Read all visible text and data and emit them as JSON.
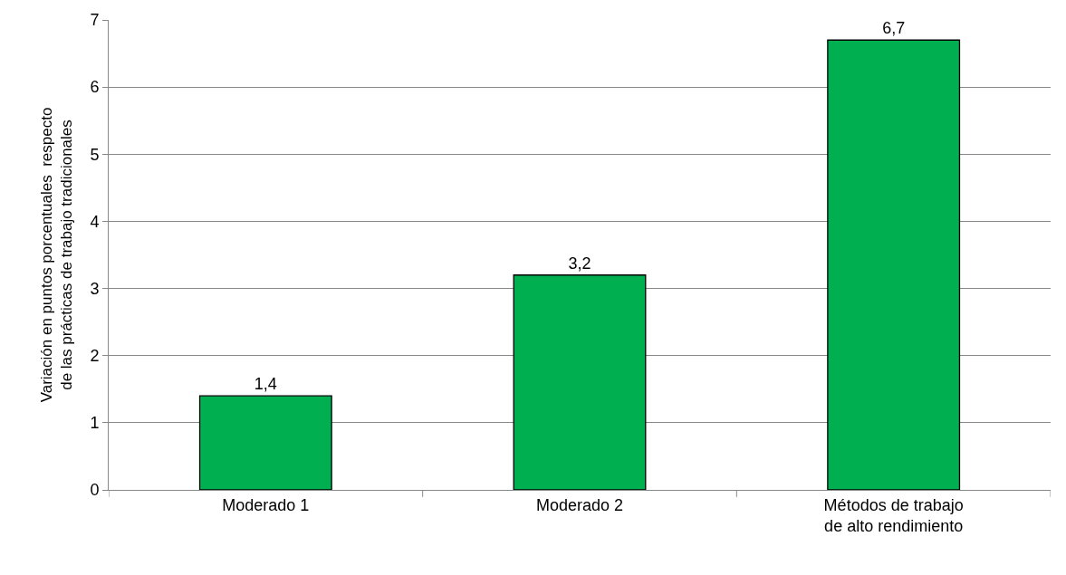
{
  "chart_data": {
    "type": "bar",
    "ylabel": "Variación en puntos porcentuales  respecto\nde las prácticas de trabajo tradicionales",
    "categories": [
      "Moderado 1",
      "Moderado 2",
      "Métodos de trabajo\nde alto rendimiento"
    ],
    "values": [
      1.4,
      3.2,
      6.7
    ],
    "value_labels": [
      "1,4",
      "3,2",
      "6,7"
    ],
    "color": "#00b050",
    "ylim": [
      0,
      7
    ],
    "yticks": [
      0,
      1,
      2,
      3,
      4,
      5,
      6,
      7
    ],
    "grid": "y"
  }
}
